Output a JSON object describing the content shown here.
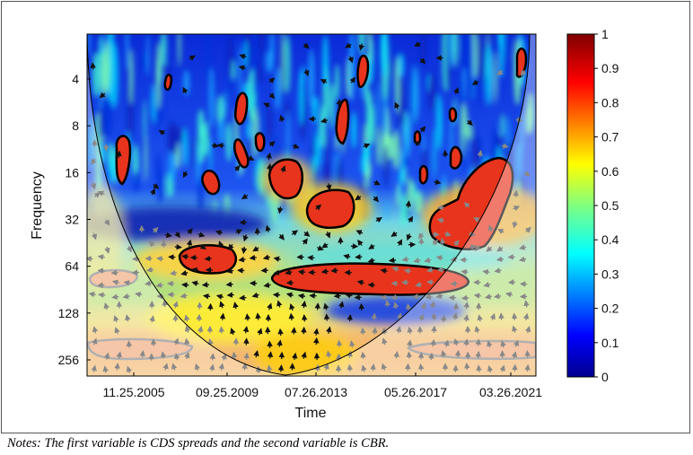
{
  "chart_data": {
    "type": "heatmap",
    "title": "",
    "xlabel": "Time",
    "ylabel": "Frequency",
    "x_ticks": [
      "11.25.2005",
      "09.25.2009",
      "07.26.2013",
      "05.26.2017",
      "03.26.2021"
    ],
    "y_ticks": [
      4,
      8,
      16,
      32,
      64,
      128,
      256
    ],
    "y_scale": "log2",
    "y_direction": "reversed",
    "colorbar": {
      "min": 0,
      "max": 1,
      "ticks": [
        "0",
        "0.1",
        "0.2",
        "0.3",
        "0.4",
        "0.5",
        "0.6",
        "0.7",
        "0.8",
        "0.9",
        "1"
      ],
      "colormap": "jet"
    },
    "significant_regions": [
      {
        "period_range": [
          10,
          20
        ],
        "time": "2004"
      },
      {
        "period_range": [
          50,
          75
        ],
        "time": "2008-2010"
      },
      {
        "period_range": [
          12,
          24
        ],
        "time": "2012"
      },
      {
        "period_range": [
          22,
          38
        ],
        "time": "2014"
      },
      {
        "period_range": [
          55,
          80
        ],
        "time": "2011-2019"
      },
      {
        "period_range": [
          14,
          45
        ],
        "time": "2018-2021"
      }
    ],
    "cone_of_influence": true,
    "phase_arrows": true
  },
  "note": "Notes: The first variable is CDS spreads and the second variable is CBR."
}
